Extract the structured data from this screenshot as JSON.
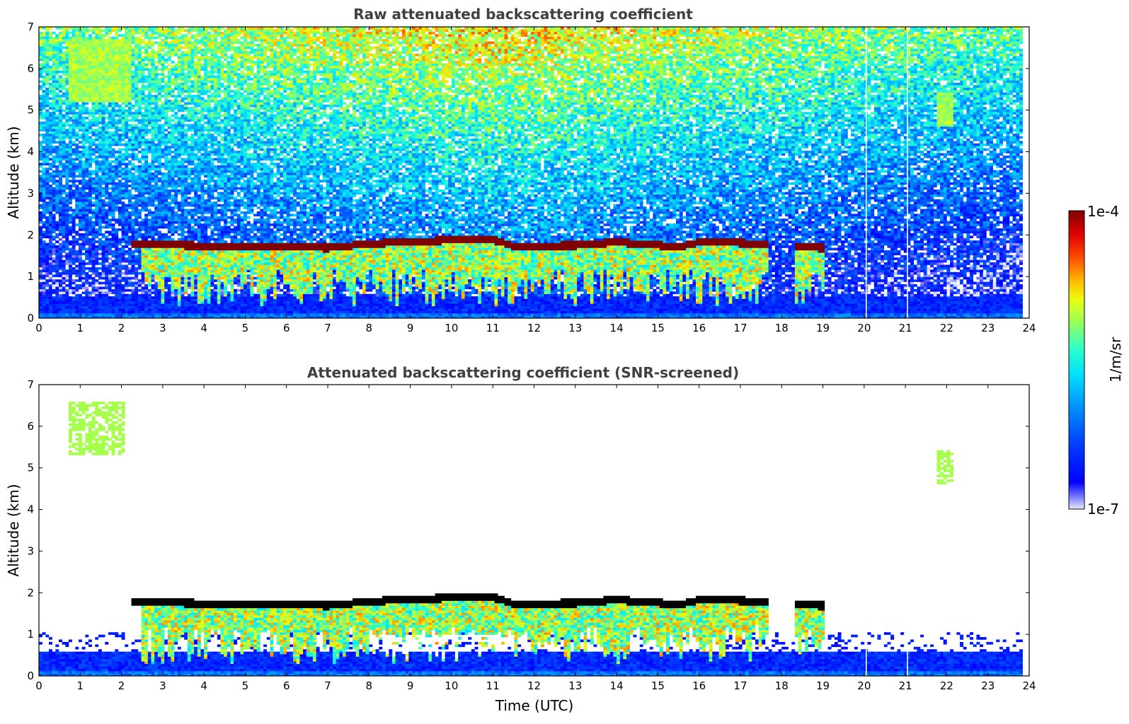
{
  "colors": {
    "colormap_jet": [
      "#00007f",
      "#0000ff",
      "#007fff",
      "#00ffff",
      "#7fff7f",
      "#ffff00",
      "#ff7f00",
      "#ff0000",
      "#7f0000"
    ],
    "colormap_low_end": [
      "#e8e8fc",
      "#0000ff"
    ],
    "cloud_core": "#000000",
    "missing_data": "#ffffff"
  },
  "colorbar": {
    "label": "1/m/sr",
    "max_label": "1e-4",
    "min_label": "1e-7",
    "scale": "log",
    "range": [
      1e-07,
      0.0001
    ]
  },
  "chart_data": [
    {
      "type": "heatmap",
      "title": "Raw attenuated backscattering coefficient",
      "xlabel": "",
      "ylabel": "Altitude (km)",
      "xlim": [
        0,
        24
      ],
      "ylim": [
        0,
        7
      ],
      "xticks": [
        "0",
        "1",
        "2",
        "3",
        "4",
        "5",
        "6",
        "7",
        "8",
        "9",
        "10",
        "11",
        "12",
        "13",
        "14",
        "15",
        "16",
        "17",
        "18",
        "19",
        "20",
        "21",
        "22",
        "23",
        "24"
      ],
      "yticks": [
        "0",
        "1",
        "2",
        "3",
        "4",
        "5",
        "6",
        "7"
      ],
      "value_scale": "log",
      "value_range": [
        1e-07,
        0.0001
      ],
      "cloud_layer": {
        "segments": [
          [
            2.2,
            17.7
          ],
          [
            18.3,
            19.0
          ]
        ],
        "top_km": [
          [
            2.2,
            1.88
          ],
          [
            4,
            1.83
          ],
          [
            6,
            1.82
          ],
          [
            7,
            1.78
          ],
          [
            8,
            1.88
          ],
          [
            9,
            1.93
          ],
          [
            10,
            1.97
          ],
          [
            11,
            1.98
          ],
          [
            11.5,
            1.83
          ],
          [
            13,
            1.84
          ],
          [
            14,
            1.92
          ],
          [
            15,
            1.85
          ],
          [
            15.5,
            1.8
          ],
          [
            16,
            1.92
          ],
          [
            17,
            1.9
          ],
          [
            17.7,
            1.88
          ],
          [
            18.3,
            1.8
          ],
          [
            19.0,
            1.78
          ]
        ],
        "thickness_km": 0.18,
        "backscatter": 0.0001
      },
      "precipitation_below_cloud": {
        "x_range": [
          2.5,
          17.7
        ],
        "lowest_km": 0.3
      },
      "boundary_layer_top_km": 0.5,
      "aerosol_features": [
        {
          "x_range": [
            0.7,
            2.2
          ],
          "alt_range_km": [
            5.2,
            6.7
          ]
        },
        {
          "x_range": [
            21.8,
            22.2
          ],
          "alt_range_km": [
            4.6,
            5.4
          ]
        }
      ],
      "data_gaps_utc": [
        20.05,
        21.05
      ],
      "data_end_utc": 23.8
    },
    {
      "type": "heatmap",
      "title": "Attenuated backscattering coefficient (SNR-screened)",
      "xlabel": "Time (UTC)",
      "ylabel": "Altitude (km)",
      "xlim": [
        0,
        24
      ],
      "ylim": [
        0,
        7
      ],
      "xticks": [
        "0",
        "1",
        "2",
        "3",
        "4",
        "5",
        "6",
        "7",
        "8",
        "9",
        "10",
        "11",
        "12",
        "13",
        "14",
        "15",
        "16",
        "17",
        "18",
        "19",
        "20",
        "21",
        "22",
        "23",
        "24"
      ],
      "yticks": [
        "0",
        "1",
        "2",
        "3",
        "4",
        "5",
        "6",
        "7"
      ],
      "value_scale": "log",
      "value_range": [
        1e-07,
        0.0001
      ],
      "cloud_layer": {
        "segments": [
          [
            2.2,
            17.7
          ],
          [
            18.3,
            19.0
          ]
        ],
        "top_km": [
          [
            2.2,
            1.88
          ],
          [
            4,
            1.83
          ],
          [
            6,
            1.82
          ],
          [
            7,
            1.78
          ],
          [
            8,
            1.88
          ],
          [
            9,
            1.93
          ],
          [
            10,
            1.97
          ],
          [
            11,
            1.98
          ],
          [
            11.5,
            1.83
          ],
          [
            13,
            1.84
          ],
          [
            14,
            1.92
          ],
          [
            15,
            1.85
          ],
          [
            15.5,
            1.8
          ],
          [
            16,
            1.92
          ],
          [
            17,
            1.9
          ],
          [
            17.7,
            1.88
          ],
          [
            18.3,
            1.8
          ],
          [
            19.0,
            1.78
          ]
        ],
        "thickness_km": 0.18,
        "rendered_as": "black"
      },
      "precipitation_below_cloud": {
        "x_range": [
          2.5,
          17.7
        ],
        "lowest_km": 0.3
      },
      "screened_clear_region": {
        "x_range": [
          8.0,
          11.5
        ],
        "alt_range_km": [
          0.4,
          1.0
        ]
      },
      "boundary_layer_top_km": 0.6,
      "aerosol_features": [
        {
          "x_range": [
            0.7,
            2.1
          ],
          "alt_range_km": [
            5.3,
            6.6
          ]
        },
        {
          "x_range": [
            21.8,
            22.2
          ],
          "alt_range_km": [
            4.6,
            5.4
          ]
        }
      ],
      "data_gaps_utc": [
        20.05,
        21.05
      ],
      "data_end_utc": 23.8
    }
  ]
}
